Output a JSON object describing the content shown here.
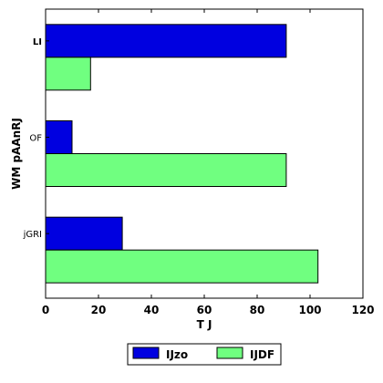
{
  "chart_data": {
    "type": "bar",
    "orientation": "horizontal",
    "categories": [
      "jGRI",
      "OF",
      "LI"
    ],
    "category_label_bold": [
      false,
      false,
      true
    ],
    "series": [
      {
        "name": "IJzo",
        "values": [
          29,
          10,
          91
        ],
        "color": "#0000e0"
      },
      {
        "name": "IJDF",
        "values": [
          103,
          91,
          17
        ],
        "color": "#70ff80"
      }
    ],
    "xlabel": "T   J",
    "ylabel": "WM pAAnRJ",
    "xlim": [
      0,
      120
    ],
    "xticks": [
      0,
      20,
      40,
      60,
      80,
      100,
      120
    ],
    "grid": false,
    "legend_position": "bottom-center"
  }
}
